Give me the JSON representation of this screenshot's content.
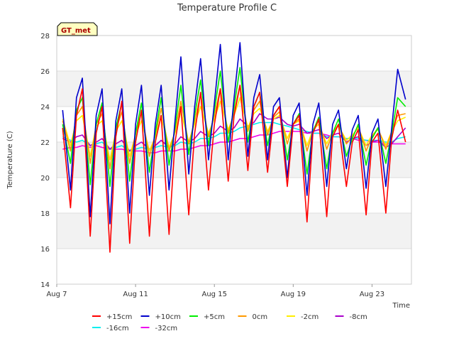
{
  "chart_data": {
    "type": "line",
    "title": "Temperature Profile C",
    "xlabel": "Time",
    "ylabel": "Temperature (C)",
    "ylim": [
      14,
      28
    ],
    "yticks": [
      14,
      16,
      18,
      20,
      22,
      24,
      26,
      28
    ],
    "x_range_days": [
      7,
      25
    ],
    "xticks": [
      "Aug 7",
      "Aug 11",
      "Aug 15",
      "Aug 19",
      "Aug 23"
    ],
    "xtick_days": [
      7,
      11,
      15,
      19,
      23
    ],
    "grid": true,
    "background_bands": true,
    "legend_placement": "bottom-center",
    "annotation": "GT_met",
    "x_days": [
      7.3,
      7.7,
      8.0,
      8.3,
      8.7,
      9.0,
      9.3,
      9.7,
      10.0,
      10.3,
      10.7,
      11.0,
      11.3,
      11.7,
      12.0,
      12.3,
      12.7,
      13.0,
      13.3,
      13.7,
      14.0,
      14.3,
      14.7,
      15.0,
      15.3,
      15.7,
      16.0,
      16.3,
      16.7,
      17.0,
      17.3,
      17.7,
      18.0,
      18.3,
      18.7,
      19.0,
      19.3,
      19.7,
      20.0,
      20.3,
      20.7,
      21.0,
      21.3,
      21.7,
      22.0,
      22.3,
      22.7,
      23.0,
      23.3,
      23.7,
      24.0,
      24.3,
      24.7
    ],
    "series": [
      {
        "name": "+15cm",
        "color": "#ff0000",
        "values": [
          22.8,
          18.3,
          23.5,
          25.0,
          16.7,
          22.5,
          24.0,
          15.8,
          22.3,
          24.3,
          16.3,
          22.0,
          23.8,
          16.7,
          22.0,
          23.5,
          16.8,
          22.0,
          24.0,
          17.9,
          22.5,
          24.8,
          19.3,
          23.0,
          25.0,
          19.8,
          23.5,
          25.2,
          20.4,
          24.0,
          24.8,
          20.3,
          23.5,
          24.0,
          19.5,
          23.0,
          23.5,
          17.5,
          22.5,
          23.3,
          17.8,
          22.3,
          23.0,
          19.5,
          22.0,
          22.7,
          17.9,
          22.0,
          22.5,
          18.0,
          22.2,
          23.8,
          22.0
        ]
      },
      {
        "name": "+10cm",
        "color": "#0000cc",
        "values": [
          23.8,
          19.3,
          24.5,
          25.6,
          17.8,
          23.5,
          25.0,
          17.4,
          23.2,
          25.0,
          18.0,
          23.0,
          25.2,
          19.0,
          23.0,
          25.2,
          19.3,
          23.2,
          26.8,
          20.2,
          24.0,
          26.7,
          21.0,
          24.2,
          27.5,
          21.0,
          24.5,
          27.6,
          21.2,
          24.5,
          25.8,
          21.0,
          24.0,
          24.5,
          20.0,
          23.5,
          24.2,
          19.0,
          23.0,
          24.2,
          19.5,
          23.0,
          23.8,
          20.5,
          22.7,
          23.5,
          19.4,
          22.5,
          23.3,
          19.5,
          22.8,
          26.1,
          24.4
        ]
      },
      {
        "name": "+5cm",
        "color": "#00ee00",
        "values": [
          23.0,
          20.8,
          23.8,
          24.5,
          19.6,
          23.0,
          24.2,
          19.5,
          22.8,
          24.2,
          19.8,
          22.5,
          24.2,
          20.3,
          22.5,
          24.5,
          20.7,
          22.8,
          25.2,
          21.3,
          23.5,
          25.5,
          21.8,
          23.8,
          26.0,
          22.0,
          24.0,
          26.2,
          22.0,
          24.0,
          24.8,
          21.8,
          23.5,
          24.0,
          21.0,
          23.0,
          23.6,
          20.2,
          22.6,
          23.4,
          20.5,
          22.5,
          23.3,
          21.2,
          22.2,
          23.0,
          20.7,
          22.2,
          22.8,
          20.8,
          22.5,
          24.5,
          24.0
        ]
      },
      {
        "name": "0cm",
        "color": "#ff9900",
        "values": [
          23.2,
          21.5,
          23.5,
          24.0,
          20.8,
          23.0,
          23.6,
          20.5,
          22.7,
          23.7,
          20.8,
          22.5,
          23.7,
          21.2,
          22.4,
          23.9,
          21.5,
          22.6,
          24.3,
          21.9,
          23.2,
          24.7,
          22.3,
          23.5,
          25.0,
          22.5,
          23.7,
          25.2,
          22.6,
          23.8,
          24.3,
          22.4,
          23.4,
          23.7,
          21.9,
          23.0,
          23.3,
          21.5,
          22.6,
          23.2,
          21.6,
          22.5,
          23.0,
          21.9,
          22.3,
          22.9,
          21.5,
          22.3,
          22.8,
          21.6,
          22.6,
          23.5,
          23.6
        ]
      },
      {
        "name": "-2cm",
        "color": "#ffee00",
        "values": [
          23.3,
          21.8,
          23.2,
          23.5,
          21.2,
          22.9,
          23.2,
          21.0,
          22.6,
          23.2,
          21.2,
          22.4,
          23.2,
          21.5,
          22.3,
          23.4,
          21.7,
          22.5,
          23.7,
          22.0,
          23.0,
          24.0,
          22.5,
          23.3,
          24.3,
          22.7,
          23.5,
          24.5,
          22.8,
          23.6,
          23.9,
          22.6,
          23.3,
          23.5,
          22.2,
          23.0,
          23.2,
          21.8,
          22.7,
          23.0,
          21.9,
          22.6,
          22.9,
          22.1,
          22.4,
          22.8,
          21.8,
          22.4,
          22.7,
          21.8,
          22.6,
          23.2,
          23.4
        ]
      },
      {
        "name": "-8cm",
        "color": "#aa00cc",
        "values": [
          22.2,
          22.0,
          22.3,
          22.4,
          21.8,
          22.0,
          22.2,
          21.6,
          21.9,
          22.1,
          21.5,
          21.8,
          22.0,
          21.6,
          21.8,
          22.1,
          21.7,
          21.9,
          22.3,
          22.0,
          22.2,
          22.6,
          22.3,
          22.5,
          22.9,
          22.6,
          22.8,
          23.3,
          22.9,
          23.1,
          23.6,
          23.3,
          23.3,
          23.4,
          23.0,
          22.9,
          23.0,
          22.5,
          22.6,
          22.7,
          22.2,
          22.4,
          22.5,
          22.0,
          22.2,
          22.3,
          21.8,
          22.0,
          22.1,
          21.7,
          21.9,
          22.3,
          22.8
        ]
      },
      {
        "name": "-16cm",
        "color": "#00eeee",
        "values": [
          22.3,
          22.1,
          22.0,
          22.1,
          21.8,
          21.9,
          22.0,
          21.6,
          21.7,
          21.8,
          21.5,
          21.6,
          21.7,
          21.6,
          21.7,
          21.8,
          21.7,
          21.8,
          22.0,
          21.9,
          22.0,
          22.2,
          22.2,
          22.3,
          22.5,
          22.5,
          22.6,
          22.8,
          22.9,
          23.0,
          23.1,
          23.1,
          23.1,
          23.0,
          22.9,
          22.8,
          22.7,
          22.6,
          22.5,
          22.5,
          22.3,
          22.3,
          22.3,
          22.2,
          22.2,
          22.2,
          22.1,
          22.1,
          22.1,
          22.0,
          22.0,
          22.2,
          22.3
        ]
      },
      {
        "name": "-32cm",
        "color": "#ee00ee",
        "values": [
          21.6,
          21.7,
          21.7,
          21.8,
          21.7,
          21.8,
          21.7,
          21.6,
          21.6,
          21.6,
          21.5,
          21.5,
          21.5,
          21.4,
          21.4,
          21.5,
          21.5,
          21.5,
          21.6,
          21.6,
          21.7,
          21.8,
          21.8,
          21.9,
          22.0,
          22.0,
          22.1,
          22.2,
          22.2,
          22.3,
          22.4,
          22.4,
          22.5,
          22.6,
          22.6,
          22.6,
          22.6,
          22.5,
          22.5,
          22.5,
          22.4,
          22.3,
          22.3,
          22.2,
          22.2,
          22.1,
          22.1,
          22.0,
          22.0,
          21.9,
          21.9,
          21.9,
          21.9
        ]
      }
    ]
  }
}
